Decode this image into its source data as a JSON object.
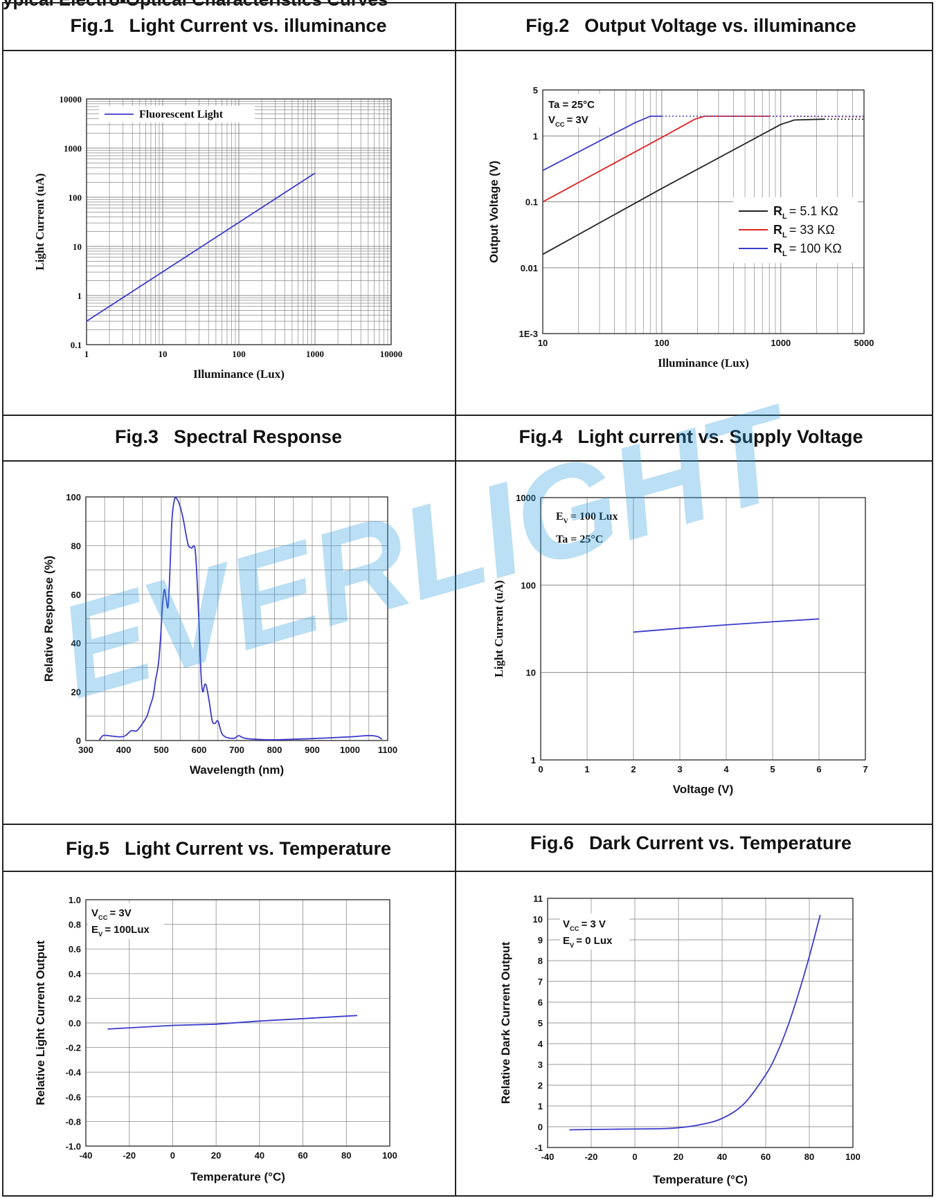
{
  "page": {
    "header_cut": "ypical Electro-Optical Characteristics Curves",
    "watermark": "EVERLIGHT"
  },
  "figures": [
    {
      "num": "Fig.1",
      "title": "Light Current vs. illuminance"
    },
    {
      "num": "Fig.2",
      "title": "Output Voltage vs. illuminance"
    },
    {
      "num": "Fig.3",
      "title": "Spectral Response"
    },
    {
      "num": "Fig.4",
      "title": "Light current vs. Supply Voltage"
    },
    {
      "num": "Fig.5",
      "title": "Light Current vs. Temperature"
    },
    {
      "num": "Fig.6",
      "title": "Dark Current vs. Temperature"
    }
  ],
  "chart_data": [
    {
      "id": "fig1",
      "type": "line",
      "xlabel": "Illuminance (Lux)",
      "ylabel": "Light Current (uA)",
      "xscale": "log",
      "yscale": "log",
      "xlim": [
        1,
        10000
      ],
      "ylim": [
        0.1,
        10000
      ],
      "xticks": [
        "1",
        "10",
        "100",
        "1000",
        "10000"
      ],
      "yticks": [
        "0.1",
        "1",
        "10",
        "100",
        "1000",
        "10000"
      ],
      "grid": true,
      "legend": "top-left",
      "series": [
        {
          "name": "Fluorescent Light",
          "color": "#3a3acc",
          "x": [
            1,
            1000
          ],
          "y": [
            0.3,
            310
          ]
        }
      ]
    },
    {
      "id": "fig2",
      "type": "line",
      "xlabel": "Illuminance (Lux)",
      "ylabel": "Output Voltage (V)",
      "xscale": "log",
      "yscale": "log",
      "xlim": [
        10,
        5000
      ],
      "ylim": [
        0.001,
        5
      ],
      "xticks": [
        "10",
        "100",
        "1000",
        "5000"
      ],
      "yticks": [
        "1E-3",
        "0.01",
        "0.1",
        "1",
        "5"
      ],
      "annotations": [
        "Ta = 25°C",
        "V",
        "CC",
        "= 3V"
      ],
      "grid": true,
      "legend": "center-right",
      "series": [
        {
          "name_main": "R",
          "name_sub": "L",
          "name_rest": "= 5.1 KΩ",
          "color": "#222222",
          "x": [
            10,
            100,
            1000,
            1300,
            2300
          ],
          "y": [
            0.016,
            0.16,
            1.5,
            1.75,
            1.8
          ],
          "dotted_x": [
            2300,
            5000
          ],
          "dotted_y": [
            1.8,
            1.8
          ]
        },
        {
          "name_main": "R",
          "name_sub": "L",
          "name_rest": "= 33 KΩ",
          "color": "#dd2222",
          "x": [
            10,
            100,
            190,
            230,
            800
          ],
          "y": [
            0.1,
            0.95,
            1.8,
            2.0,
            2.0
          ],
          "dotted_x": [
            800,
            5000
          ],
          "dotted_y": [
            2.0,
            1.95
          ]
        },
        {
          "name_main": "R",
          "name_sub": "L",
          "name_rest": "= 100 KΩ",
          "color": "#3a3acc",
          "x": [
            10,
            40,
            60,
            80,
            100
          ],
          "y": [
            0.3,
            1.1,
            1.6,
            2.0,
            2.0
          ],
          "dotted_x": [
            100,
            5000
          ],
          "dotted_y": [
            2.0,
            2.0
          ]
        }
      ]
    },
    {
      "id": "fig3",
      "type": "line",
      "xlabel": "Wavelength (nm)",
      "ylabel": "Relative Response (%)",
      "xlim": [
        300,
        1100
      ],
      "ylim": [
        0,
        100
      ],
      "xticks": [
        "300",
        "400",
        "500",
        "600",
        "700",
        "800",
        "900",
        "1000",
        "1100"
      ],
      "yticks": [
        "0",
        "20",
        "40",
        "60",
        "80",
        "100"
      ],
      "grid": true,
      "series": [
        {
          "color": "#3a3acc",
          "x": [
            335,
            345,
            360,
            390,
            405,
            420,
            435,
            450,
            462,
            470,
            478,
            485,
            492,
            498,
            503,
            508,
            513,
            518,
            523,
            528,
            535,
            542,
            550,
            558,
            565,
            572,
            580,
            590,
            598,
            602,
            606,
            610,
            615,
            620,
            628,
            635,
            642,
            650,
            660,
            670,
            680,
            695,
            705,
            720,
            750,
            800,
            900,
            1000,
            1040,
            1060,
            1075,
            1085
          ],
          "y": [
            0,
            2,
            2,
            1.5,
            2,
            4,
            4,
            7,
            10,
            14,
            18,
            25,
            31,
            42,
            55,
            62,
            58,
            55,
            70,
            90,
            99,
            99,
            96,
            91,
            85,
            80,
            79,
            78,
            55,
            40,
            25,
            20,
            23,
            22,
            15,
            8,
            7,
            8,
            3,
            1.5,
            1,
            1,
            2,
            1,
            0.5,
            0.3,
            0.8,
            1.5,
            2,
            2,
            1.5,
            0.5
          ]
        }
      ]
    },
    {
      "id": "fig4",
      "type": "line",
      "xlabel": "Voltage (V)",
      "ylabel": "Light Current (uA)",
      "yscale": "log",
      "xlim": [
        0,
        7
      ],
      "ylim": [
        1,
        1000
      ],
      "xticks": [
        "0",
        "1",
        "2",
        "3",
        "4",
        "5",
        "6",
        "7"
      ],
      "yticks": [
        "1",
        "10",
        "100",
        "1000"
      ],
      "annotations": [
        "E",
        "V",
        "= 100 Lux",
        "Ta = 25°C"
      ],
      "grid": true,
      "series": [
        {
          "color": "#3a3acc",
          "x": [
            2,
            3,
            4,
            5,
            6
          ],
          "y": [
            29,
            32,
            35,
            38,
            41
          ]
        }
      ]
    },
    {
      "id": "fig5",
      "type": "line",
      "xlabel": "Temperature (°C)",
      "ylabel": "Relative Light Current Output",
      "xlim": [
        -40,
        100
      ],
      "ylim": [
        -1.0,
        1.0
      ],
      "xticks": [
        "-40",
        "-20",
        "0",
        "20",
        "40",
        "60",
        "80",
        "100"
      ],
      "yticks": [
        "-1.0",
        "-0.8",
        "-0.6",
        "-0.4",
        "-0.2",
        "0.0",
        "0.2",
        "0.4",
        "0.6",
        "0.8",
        "1.0"
      ],
      "annotations": [
        "V",
        "CC",
        "= 3V",
        "E",
        "V",
        "= 100Lux"
      ],
      "grid": true,
      "series": [
        {
          "color": "#3a3acc",
          "x": [
            -30,
            0,
            20,
            40,
            60,
            85
          ],
          "y": [
            -0.05,
            -0.02,
            -0.01,
            0.015,
            0.035,
            0.06
          ]
        }
      ]
    },
    {
      "id": "fig6",
      "type": "line",
      "xlabel": "Temperature (°C)",
      "ylabel": "Relative Dark Current Output",
      "xlim": [
        -40,
        100
      ],
      "ylim": [
        -1,
        11
      ],
      "xticks": [
        "-40",
        "-20",
        "0",
        "20",
        "40",
        "60",
        "80",
        "100"
      ],
      "yticks": [
        "-1",
        "0",
        "1",
        "2",
        "3",
        "4",
        "5",
        "6",
        "7",
        "8",
        "9",
        "10",
        "11"
      ],
      "annotations": [
        "V",
        "CC",
        "= 3 V",
        "E",
        "V",
        "= 0 Lux"
      ],
      "grid": true,
      "series": [
        {
          "color": "#3a3acc",
          "x": [
            -30,
            -10,
            10,
            20,
            30,
            40,
            50,
            60,
            65,
            70,
            75,
            80,
            85
          ],
          "y": [
            -0.15,
            -0.12,
            -0.1,
            -0.05,
            0.1,
            0.4,
            1.1,
            2.5,
            3.5,
            4.8,
            6.4,
            8.2,
            10.2
          ]
        }
      ]
    }
  ]
}
